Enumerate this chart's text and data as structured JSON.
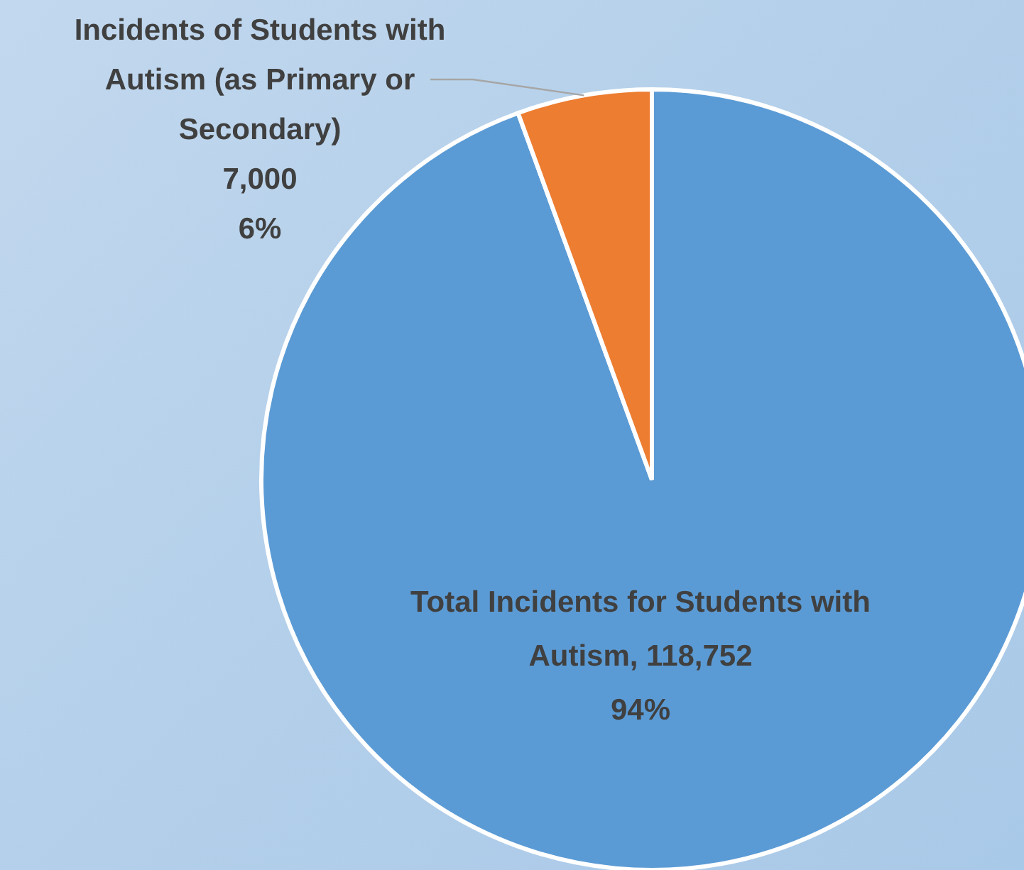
{
  "chart_data": {
    "type": "pie",
    "categories": [
      "Total Incidents for Students with Autism",
      "Incidents of Students with Autism (as Primary or Secondary)"
    ],
    "values": [
      118752,
      7000
    ],
    "colors": [
      "#5b9bd5",
      "#ed7d31"
    ],
    "value_labels": [
      "118,752\n94%",
      "7,000\n6%"
    ],
    "legend": false
  }
}
